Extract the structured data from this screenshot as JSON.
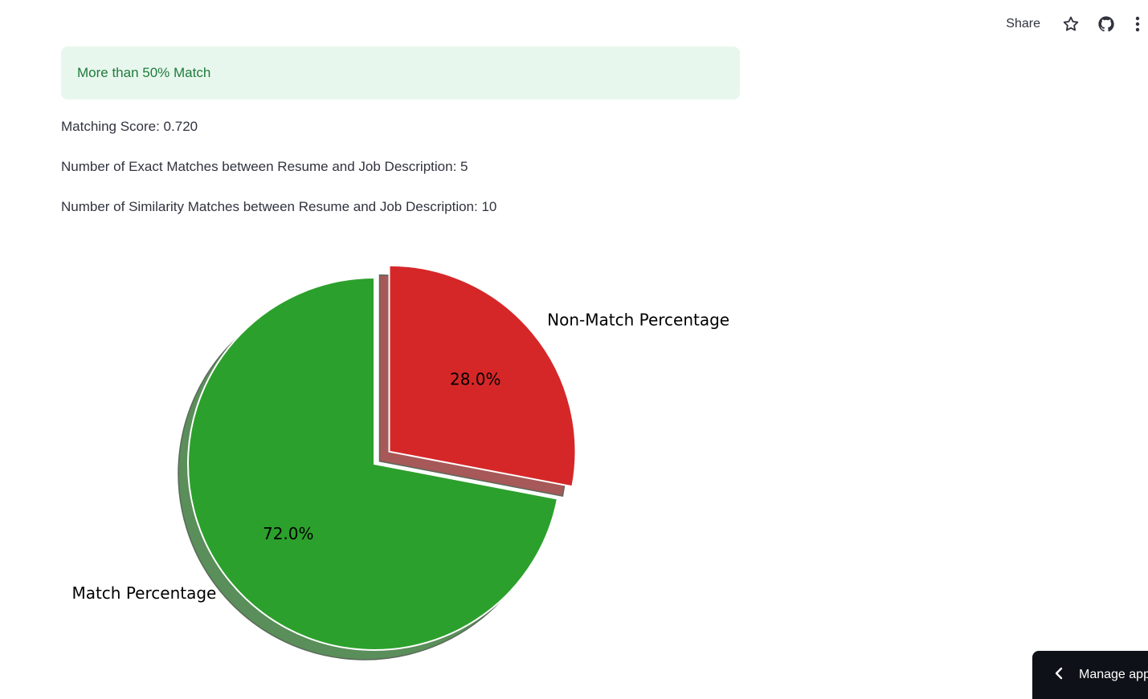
{
  "toolbar": {
    "share_label": "Share",
    "icons": [
      "star-icon",
      "github-icon",
      "more-vertical-icon"
    ]
  },
  "alert": {
    "text": "More than 50% Match",
    "bg_color": "#e8f7ed",
    "text_color": "#1e7b3c"
  },
  "stats": {
    "matching_score": "Matching Score: 0.720",
    "exact_matches": "Number of Exact Matches between Resume and Job Description: 5",
    "similarity_matches": "Number of Similarity Matches between Resume and Job Description: 10"
  },
  "chart_data": {
    "type": "pie",
    "slices": [
      {
        "label": "Match Percentage",
        "value": 72.0,
        "pct_label": "72.0%",
        "color": "#2ca02c",
        "explode": false
      },
      {
        "label": "Non-Match Percentage",
        "value": 28.0,
        "pct_label": "28.0%",
        "color": "#d62728",
        "explode": true
      }
    ],
    "start_angle_deg": 90,
    "shadow": true
  },
  "manage_app": {
    "label": "Manage app"
  }
}
